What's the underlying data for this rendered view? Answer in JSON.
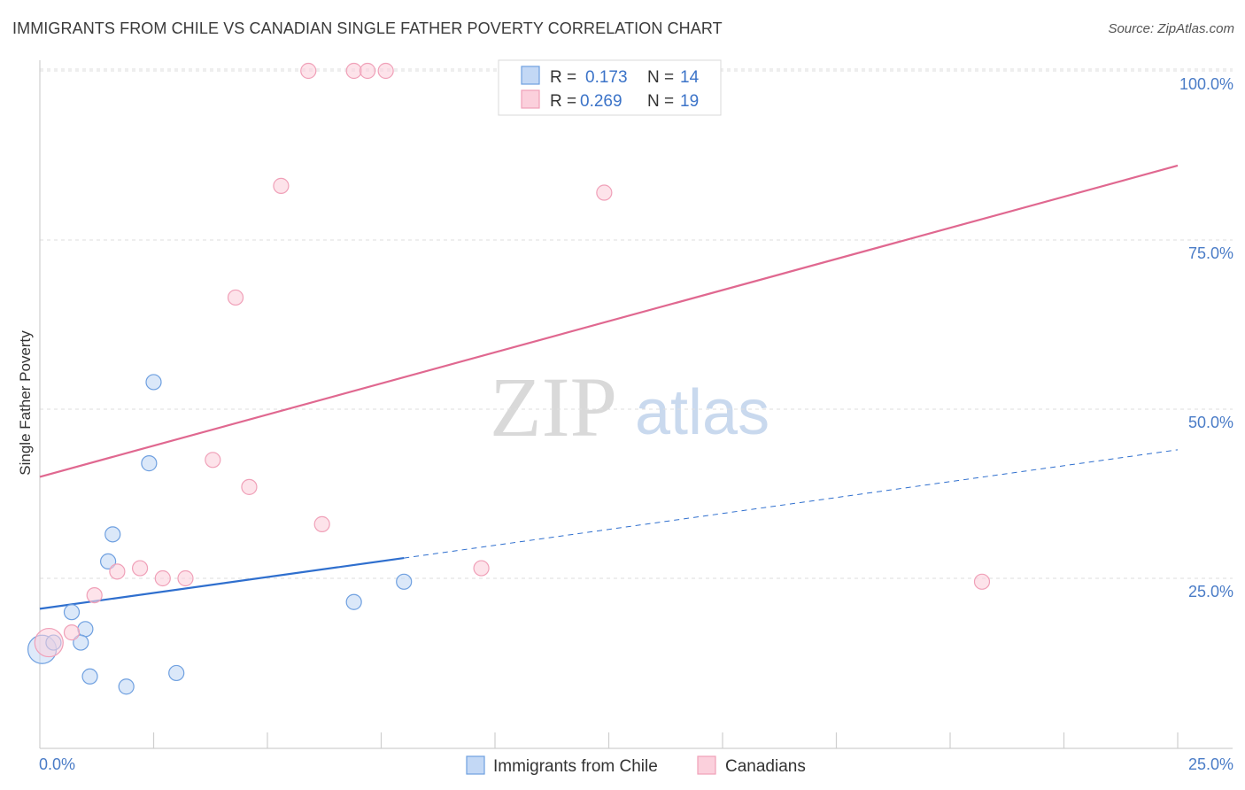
{
  "header": {
    "title": "IMMIGRANTS FROM CHILE VS CANADIAN SINGLE FATHER POVERTY CORRELATION CHART",
    "source": "Source: ZipAtlas.com"
  },
  "watermark": {
    "zip": "ZIP",
    "atlas": "atlas"
  },
  "chart_data": {
    "type": "scatter",
    "title": "IMMIGRANTS FROM CHILE VS CANADIAN SINGLE FATHER POVERTY CORRELATION CHART",
    "xlabel": "",
    "ylabel": "Single Father Poverty",
    "xlim": [
      0,
      25
    ],
    "ylim": [
      0,
      102.5
    ],
    "x_tick_labels": {
      "min": "0.0%",
      "max": "25.0%"
    },
    "y_ticks": [
      {
        "value": 25,
        "label": "25.0%"
      },
      {
        "value": 50,
        "label": "50.0%"
      },
      {
        "value": 75,
        "label": "75.0%"
      },
      {
        "value": 100,
        "label": "100.0%"
      }
    ],
    "x_minor_ticks": [
      2.5,
      5,
      7.5,
      10,
      12.5,
      15,
      17.5,
      20,
      22.5,
      25
    ],
    "grid": true,
    "legend": {
      "placement": "top-center",
      "rows": [
        {
          "r_label": "R =",
          "r_value": "0.173",
          "n_label": "N =",
          "n_value": "14"
        },
        {
          "r_label": "R =",
          "r_value": "0.269",
          "n_label": "N =",
          "n_value": "19"
        }
      ]
    },
    "series": [
      {
        "name": "Immigrants from Chile",
        "color": "#6fa0e0",
        "fill": "#c3d8f5",
        "line_color": "#2f6fce",
        "points": [
          [
            0.05,
            14.5
          ],
          [
            0.3,
            15.5
          ],
          [
            1.0,
            17.5
          ],
          [
            0.9,
            15.5
          ],
          [
            0.7,
            20.0
          ],
          [
            1.5,
            27.5
          ],
          [
            1.6,
            31.5
          ],
          [
            2.4,
            42.0
          ],
          [
            2.5,
            54.0
          ],
          [
            1.1,
            10.5
          ],
          [
            1.9,
            9.0
          ],
          [
            3.0,
            11.0
          ],
          [
            6.9,
            21.5
          ],
          [
            8.0,
            24.5
          ]
        ],
        "big_points": [
          0
        ],
        "trend": {
          "x0": 0,
          "y0": 20.5,
          "x1": 8.0,
          "y1": 28.0,
          "x_dash_end": 25,
          "y_dash_end": 44.0
        }
      },
      {
        "name": "Canadians",
        "color": "#f0a0b8",
        "fill": "#fbd0dc",
        "line_color": "#e06890",
        "points": [
          [
            0.2,
            15.5
          ],
          [
            0.7,
            17.0
          ],
          [
            1.2,
            22.5
          ],
          [
            1.7,
            26.0
          ],
          [
            2.2,
            26.5
          ],
          [
            2.7,
            25.0
          ],
          [
            3.2,
            25.0
          ],
          [
            3.8,
            42.5
          ],
          [
            4.3,
            66.5
          ],
          [
            4.6,
            38.5
          ],
          [
            5.3,
            83.0
          ],
          [
            5.9,
            100.0
          ],
          [
            6.9,
            100.0
          ],
          [
            7.2,
            100.0
          ],
          [
            7.6,
            100.0
          ],
          [
            6.2,
            33.0
          ],
          [
            9.7,
            26.5
          ],
          [
            12.4,
            82.0
          ],
          [
            20.7,
            24.5
          ]
        ],
        "big_points": [
          0
        ],
        "trend": {
          "x0": 0,
          "y0": 40.0,
          "x1": 25,
          "y1": 86.0
        }
      }
    ]
  }
}
